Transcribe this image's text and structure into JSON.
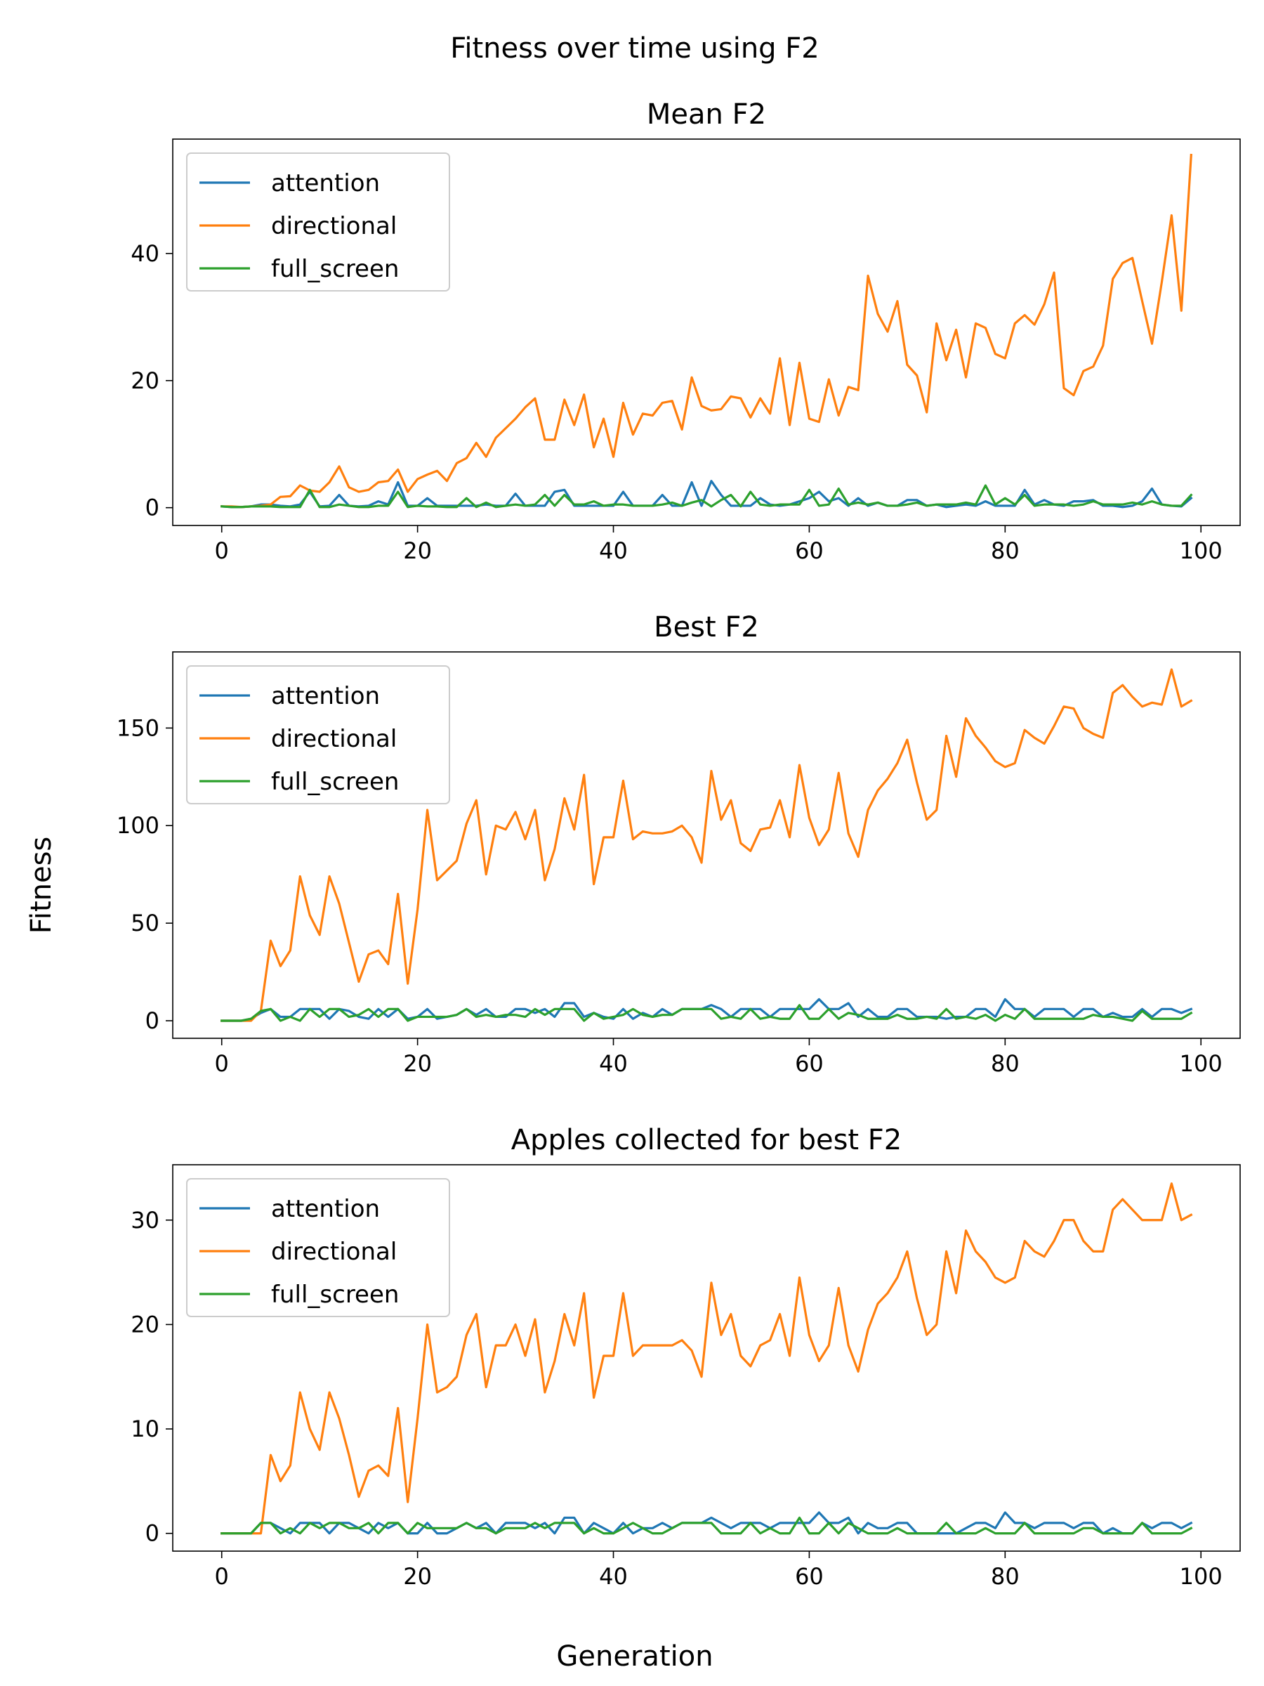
{
  "figure": {
    "suptitle": "Fitness over time using F2",
    "supylabel": "Fitness",
    "supxlabel": "Generation"
  },
  "colors": {
    "attention": "#1f77b4",
    "directional": "#ff7f0e",
    "full_screen": "#2ca02c"
  },
  "chart_data": [
    {
      "type": "line",
      "title": "Mean F2",
      "xlabel": "",
      "ylabel": "",
      "xlim": [
        -5,
        104
      ],
      "ylim": [
        -2.8,
        58
      ],
      "xticks": [
        0,
        20,
        40,
        60,
        80,
        100
      ],
      "yticks": [
        0,
        20,
        40
      ],
      "legend": "upper left",
      "grid": false,
      "series": [
        {
          "name": "attention",
          "x_start": 0,
          "values": [
            0.2,
            0.1,
            0.1,
            0.2,
            0.5,
            0.5,
            0.3,
            0.2,
            0.5,
            2.5,
            0.2,
            0.3,
            2.0,
            0.3,
            0.2,
            0.3,
            1.0,
            0.5,
            4.0,
            0.3,
            0.3,
            1.5,
            0.3,
            0.3,
            0.3,
            0.3,
            0.3,
            0.5,
            0.3,
            0.3,
            2.2,
            0.3,
            0.3,
            0.3,
            2.5,
            2.8,
            0.3,
            0.3,
            0.3,
            0.3,
            0.3,
            2.5,
            0.3,
            0.3,
            0.3,
            2.0,
            0.3,
            0.3,
            4.0,
            0.3,
            4.2,
            2.0,
            0.3,
            0.3,
            0.3,
            1.5,
            0.5,
            0.3,
            0.5,
            1.0,
            1.5,
            2.5,
            1.0,
            1.5,
            0.3,
            1.5,
            0.3,
            0.8,
            0.3,
            0.3,
            1.2,
            1.2,
            0.3,
            0.5,
            0.1,
            0.3,
            0.5,
            0.3,
            1.0,
            0.3,
            0.3,
            0.3,
            2.8,
            0.5,
            1.2,
            0.5,
            0.3,
            1.0,
            1.0,
            1.2,
            0.3,
            0.3,
            0.1,
            0.3,
            1.0,
            3.0,
            0.5,
            0.3,
            0.2,
            1.5
          ]
        },
        {
          "name": "directional",
          "x_start": 0,
          "values": [
            0.2,
            0.2,
            0.1,
            0.2,
            0.3,
            0.5,
            1.7,
            1.8,
            3.5,
            2.7,
            2.5,
            4.0,
            6.5,
            3.2,
            2.5,
            2.8,
            4.0,
            4.2,
            6.0,
            2.5,
            4.5,
            5.2,
            5.8,
            4.2,
            7.0,
            7.8,
            10.2,
            8.0,
            11.0,
            12.5,
            14.0,
            15.8,
            17.2,
            10.7,
            10.7,
            17.0,
            13.0,
            17.8,
            9.5,
            14.0,
            8.0,
            16.5,
            11.5,
            14.8,
            14.5,
            16.5,
            16.8,
            12.3,
            20.5,
            16.0,
            15.3,
            15.5,
            17.5,
            17.2,
            14.2,
            17.2,
            14.8,
            23.5,
            13.0,
            22.8,
            14.0,
            13.5,
            20.2,
            14.5,
            19.0,
            18.5,
            36.5,
            30.5,
            27.7,
            32.5,
            22.5,
            20.8,
            15.0,
            29.0,
            23.2,
            28.0,
            20.5,
            29.0,
            28.3,
            24.2,
            23.5,
            29.0,
            30.3,
            28.8,
            32.0,
            37.0,
            18.8,
            17.7,
            21.5,
            22.2,
            25.5,
            36.0,
            38.5,
            39.3,
            32.5,
            25.8,
            35.5,
            46.0,
            31.0,
            55.5
          ]
        },
        {
          "name": "full_screen",
          "x_start": 0,
          "values": [
            0.2,
            0.1,
            0.1,
            0.2,
            0.2,
            0.2,
            0.1,
            0.1,
            0.1,
            2.8,
            0.1,
            0.1,
            0.5,
            0.3,
            0.1,
            0.1,
            0.3,
            0.3,
            2.5,
            0.1,
            0.3,
            0.2,
            0.2,
            0.1,
            0.1,
            1.5,
            0.1,
            0.8,
            0.1,
            0.3,
            0.5,
            0.3,
            0.5,
            2.0,
            0.3,
            2.0,
            0.5,
            0.5,
            1.0,
            0.3,
            0.5,
            0.5,
            0.3,
            0.3,
            0.3,
            0.5,
            0.8,
            0.3,
            0.8,
            1.2,
            0.2,
            1.2,
            2.0,
            0.2,
            2.5,
            0.5,
            0.3,
            0.5,
            0.5,
            0.5,
            2.8,
            0.3,
            0.5,
            3.0,
            0.5,
            0.8,
            0.5,
            0.8,
            0.3,
            0.3,
            0.5,
            0.8,
            0.3,
            0.5,
            0.5,
            0.5,
            0.8,
            0.5,
            3.5,
            0.5,
            1.5,
            0.5,
            2.0,
            0.3,
            0.5,
            0.5,
            0.5,
            0.3,
            0.5,
            1.0,
            0.5,
            0.5,
            0.5,
            0.8,
            0.5,
            1.0,
            0.5,
            0.3,
            0.3,
            2.0
          ]
        }
      ]
    },
    {
      "type": "line",
      "title": "Best F2",
      "xlabel": "",
      "ylabel": "",
      "xlim": [
        -5,
        104
      ],
      "ylim": [
        -9,
        189
      ],
      "xticks": [
        0,
        20,
        40,
        60,
        80,
        100
      ],
      "yticks": [
        0,
        50,
        100,
        150
      ],
      "legend": "upper left",
      "grid": false,
      "series": [
        {
          "name": "attention",
          "x_start": 0,
          "values": [
            0,
            0,
            0,
            1,
            4,
            6,
            2,
            2,
            6,
            6,
            6,
            1,
            6,
            5,
            2,
            1,
            6,
            2,
            6,
            1,
            2,
            6,
            1,
            2,
            3,
            6,
            3,
            6,
            2,
            2,
            6,
            6,
            4,
            6,
            2,
            9,
            9,
            2,
            4,
            2,
            1,
            6,
            1,
            4,
            2,
            6,
            3,
            6,
            6,
            6,
            8,
            6,
            2,
            6,
            6,
            6,
            2,
            6,
            6,
            6,
            6,
            11,
            6,
            6,
            9,
            2,
            6,
            2,
            2,
            6,
            6,
            2,
            2,
            2,
            1,
            2,
            2,
            6,
            6,
            2,
            11,
            6,
            6,
            2,
            6,
            6,
            6,
            2,
            6,
            6,
            2,
            4,
            2,
            2,
            6,
            2,
            6,
            6,
            4,
            6
          ]
        },
        {
          "name": "directional",
          "x_start": 0,
          "values": [
            0,
            0,
            0,
            0,
            5,
            41,
            28,
            36,
            74,
            54,
            44,
            74,
            60,
            40,
            20,
            34,
            36,
            29,
            65,
            19,
            57,
            108,
            72,
            77,
            82,
            101,
            113,
            75,
            100,
            98,
            107,
            93,
            108,
            72,
            88,
            114,
            98,
            126,
            70,
            94,
            94,
            123,
            93,
            97,
            96,
            96,
            97,
            100,
            94,
            81,
            128,
            103,
            113,
            91,
            87,
            98,
            99,
            113,
            94,
            131,
            104,
            90,
            98,
            127,
            96,
            84,
            108,
            118,
            124,
            132,
            144,
            122,
            103,
            108,
            146,
            125,
            155,
            146,
            140,
            133,
            130,
            132,
            149,
            145,
            142,
            151,
            161,
            160,
            150,
            147,
            145,
            168,
            172,
            166,
            161,
            163,
            162,
            180,
            161,
            164
          ]
        },
        {
          "name": "full_screen",
          "x_start": 0,
          "values": [
            0,
            0,
            0,
            1,
            5,
            6,
            0,
            2,
            0,
            6,
            2,
            6,
            6,
            2,
            3,
            6,
            2,
            6,
            6,
            0,
            2,
            2,
            2,
            2,
            3,
            6,
            2,
            3,
            2,
            3,
            3,
            2,
            6,
            3,
            6,
            6,
            6,
            0,
            4,
            1,
            2,
            3,
            6,
            3,
            2,
            3,
            3,
            6,
            6,
            6,
            6,
            1,
            2,
            1,
            6,
            1,
            2,
            1,
            1,
            8,
            1,
            1,
            6,
            1,
            4,
            3,
            1,
            1,
            1,
            3,
            1,
            1,
            2,
            1,
            6,
            1,
            2,
            1,
            3,
            0,
            3,
            1,
            6,
            1,
            1,
            1,
            1,
            1,
            1,
            3,
            2,
            2,
            1,
            0,
            5,
            1,
            1,
            1,
            1,
            4
          ]
        }
      ]
    },
    {
      "type": "line",
      "title": "Apples collected for best F2",
      "xlabel": "",
      "ylabel": "",
      "xlim": [
        -5,
        104
      ],
      "ylim": [
        -1.7,
        35.3
      ],
      "xticks": [
        0,
        20,
        40,
        60,
        80,
        100
      ],
      "yticks": [
        0,
        10,
        20,
        30
      ],
      "legend": "upper left",
      "grid": false,
      "series": [
        {
          "name": "attention",
          "x_start": 0,
          "values": [
            0,
            0,
            0,
            0,
            1,
            1,
            0.5,
            0,
            1,
            1,
            1,
            0,
            1,
            1,
            0.5,
            0,
            1,
            0.5,
            1,
            0,
            0,
            1,
            0,
            0,
            0.5,
            1,
            0.5,
            1,
            0,
            1,
            1,
            1,
            0.5,
            1,
            0,
            1.5,
            1.5,
            0,
            1,
            0.5,
            0,
            1,
            0,
            0.5,
            0.5,
            1,
            0.5,
            1,
            1,
            1,
            1.5,
            1,
            0.5,
            1,
            1,
            1,
            0.5,
            1,
            1,
            1,
            1,
            2,
            1,
            1,
            1.5,
            0,
            1,
            0.5,
            0.5,
            1,
            1,
            0,
            0,
            0,
            0,
            0,
            0.5,
            1,
            1,
            0.5,
            2,
            1,
            1,
            0.5,
            1,
            1,
            1,
            0.5,
            1,
            1,
            0,
            0.5,
            0,
            0,
            1,
            0.5,
            1,
            1,
            0.5,
            1
          ]
        },
        {
          "name": "directional",
          "x_start": 0,
          "values": [
            0,
            0,
            0,
            0,
            0,
            7.5,
            5,
            6.5,
            13.5,
            10,
            8,
            13.5,
            11,
            7.5,
            3.5,
            6,
            6.5,
            5.5,
            12,
            3,
            11,
            20,
            13.5,
            14,
            15,
            19,
            21,
            14,
            18,
            18,
            20,
            17,
            20.5,
            13.5,
            16.5,
            21,
            18,
            23,
            13,
            17,
            17,
            23,
            17,
            18,
            18,
            18,
            18,
            18.5,
            17.5,
            15,
            24,
            19,
            21,
            17,
            16,
            18,
            18.5,
            21,
            17,
            24.5,
            19,
            16.5,
            18,
            23.5,
            18,
            15.5,
            19.5,
            22,
            23,
            24.5,
            27,
            22.5,
            19,
            20,
            27,
            23,
            29,
            27,
            26,
            24.5,
            24,
            24.5,
            28,
            27,
            26.5,
            28,
            30,
            30,
            28,
            27,
            27,
            31,
            32,
            31,
            30,
            30,
            30,
            33.5,
            30,
            30.5
          ]
        },
        {
          "name": "full_screen",
          "x_start": 0,
          "values": [
            0,
            0,
            0,
            0,
            1,
            1,
            0,
            0.5,
            0,
            1,
            0.5,
            1,
            1,
            0.5,
            0.5,
            1,
            0,
            1,
            1,
            0,
            1,
            0.5,
            0.5,
            0.5,
            0.5,
            1,
            0.5,
            0.5,
            0,
            0.5,
            0.5,
            0.5,
            1,
            0.5,
            1,
            1,
            1,
            0,
            0.5,
            0,
            0,
            0.5,
            1,
            0.5,
            0,
            0,
            0.5,
            1,
            1,
            1,
            1,
            0,
            0,
            0,
            1,
            0,
            0.5,
            0,
            0,
            1.5,
            0,
            0,
            1,
            0,
            1,
            0.5,
            0,
            0,
            0,
            0.5,
            0,
            0,
            0,
            0,
            1,
            0,
            0,
            0,
            0.5,
            0,
            0,
            0,
            1,
            0,
            0,
            0,
            0,
            0,
            0.5,
            0.5,
            0,
            0,
            0,
            0,
            1,
            0,
            0,
            0,
            0,
            0.5
          ]
        }
      ]
    }
  ]
}
